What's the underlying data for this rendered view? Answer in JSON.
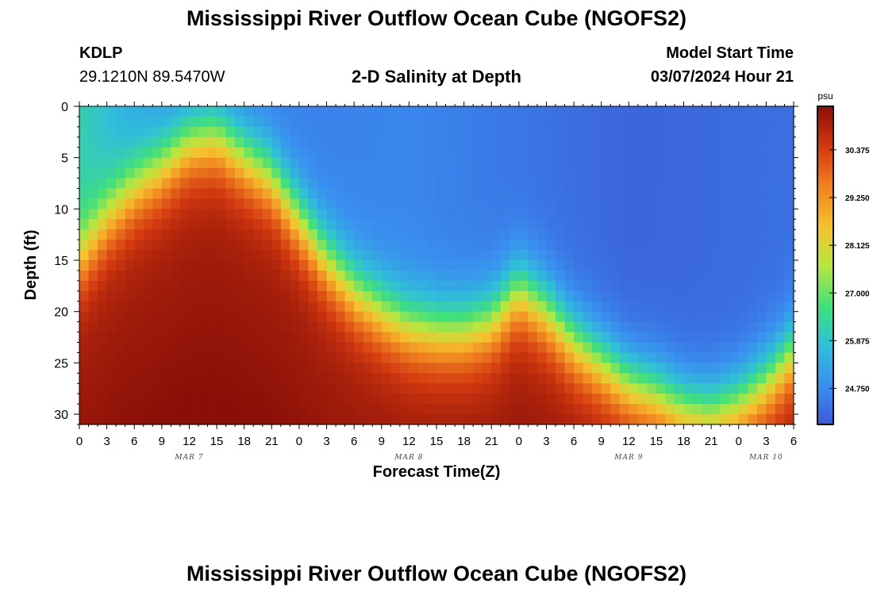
{
  "page": {
    "title_top": "Mississippi River Outflow Ocean Cube (NGOFS2)",
    "title_bottom": "Mississippi River Outflow Ocean Cube (NGOFS2)"
  },
  "station": {
    "id": "KDLP",
    "coords": "29.1210N  89.5470W"
  },
  "model": {
    "label": "Model Start Time",
    "start": "03/07/2024 Hour 21"
  },
  "colors": {
    "ramp": [
      "#3b5bd6",
      "#3a8ef0",
      "#2fc0d8",
      "#41e07a",
      "#b8e640",
      "#f5c22e",
      "#f08020",
      "#d33a10",
      "#8a0f08"
    ]
  },
  "chart_data": {
    "type": "heatmap",
    "title": "2-D Salinity at Depth",
    "xlabel": "Forecast Time(Z)",
    "ylabel": "Depth (ft)",
    "x_ticks": [
      "0",
      "3",
      "6",
      "9",
      "12",
      "15",
      "18",
      "21",
      "0",
      "3",
      "6",
      "9",
      "12",
      "15",
      "18",
      "21",
      "0",
      "3",
      "6",
      "9",
      "12",
      "15",
      "18",
      "21",
      "0",
      "3",
      "6"
    ],
    "x_range_hours": [
      0,
      78
    ],
    "day_labels": [
      {
        "label": "MAR 7",
        "hour": 12
      },
      {
        "label": "MAR 8",
        "hour": 36
      },
      {
        "label": "MAR 9",
        "hour": 60
      },
      {
        "label": "MAR 10",
        "hour": 75
      }
    ],
    "y_ticks": [
      "0",
      "5",
      "10",
      "15",
      "20",
      "25",
      "30"
    ],
    "y_range_ft": [
      0,
      31
    ],
    "colorbar": {
      "unit": "psu",
      "ticks": [
        "30.375",
        "29.250",
        "28.125",
        "27.000",
        "25.875",
        "24.750"
      ],
      "tick_values": [
        30.375,
        29.25,
        28.125,
        27.0,
        25.875,
        24.75
      ],
      "range": [
        23.9,
        31.4
      ]
    },
    "halocline_depth_ft_by_hour": [
      [
        0,
        15.0
      ],
      [
        3,
        11.0
      ],
      [
        6,
        8.0
      ],
      [
        9,
        6.0
      ],
      [
        12,
        3.5
      ],
      [
        15,
        3.0
      ],
      [
        18,
        5.0
      ],
      [
        21,
        7.0
      ],
      [
        24,
        11.0
      ],
      [
        27,
        15.0
      ],
      [
        30,
        18.0
      ],
      [
        33,
        20.0
      ],
      [
        36,
        21.5
      ],
      [
        39,
        22.0
      ],
      [
        42,
        22.0
      ],
      [
        45,
        21.0
      ],
      [
        48,
        18.0
      ],
      [
        51,
        20.0
      ],
      [
        54,
        23.0
      ],
      [
        57,
        25.0
      ],
      [
        60,
        27.0
      ],
      [
        63,
        28.0
      ],
      [
        66,
        29.5
      ],
      [
        69,
        30.0
      ],
      [
        72,
        29.0
      ],
      [
        75,
        27.0
      ],
      [
        78,
        24.0
      ]
    ],
    "surface_salinity_by_hour": [
      [
        0,
        26.2
      ],
      [
        6,
        25.3
      ],
      [
        12,
        24.6
      ],
      [
        18,
        24.5
      ],
      [
        24,
        24.6
      ],
      [
        36,
        24.7
      ],
      [
        48,
        24.4
      ],
      [
        60,
        24.1
      ],
      [
        72,
        24.2
      ],
      [
        78,
        24.3
      ]
    ],
    "bottom_salinity_psu": 31.2
  }
}
